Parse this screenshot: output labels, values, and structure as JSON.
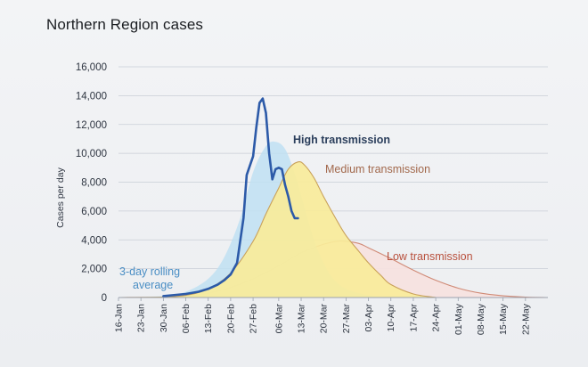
{
  "page": {
    "title": "Northern Region cases"
  },
  "colors": {
    "high_fill": "#bfe0f2",
    "medium_fill": "#f8ec9a",
    "low_fill": "#f6e2df",
    "medium_line": "#c9a15a",
    "low_line": "#d08a76",
    "rolling_line": "#2c5aa8",
    "high_label": "#2b3f5c",
    "medium_label": "#a2684c",
    "low_label": "#b8503c",
    "rolling_label": "#4a8ec4",
    "grid": "#c9ced6",
    "axis": "#9aa2ae"
  },
  "chart_data": {
    "type": "line",
    "title": "Northern Region cases",
    "xlabel": "",
    "ylabel": "Cases per day",
    "ylim": [
      0,
      16000
    ],
    "yticks": [
      0,
      2000,
      4000,
      6000,
      8000,
      10000,
      12000,
      14000,
      16000
    ],
    "ytick_labels": [
      "0",
      "2,000",
      "4,000",
      "6,000",
      "8,000",
      "10,000",
      "12,000",
      "14,000",
      "16,000"
    ],
    "xlim": [
      "2020-01-16",
      "2020-05-29"
    ],
    "xticks": [
      "2020-01-16",
      "2020-01-23",
      "2020-01-30",
      "2020-02-06",
      "2020-02-13",
      "2020-02-20",
      "2020-02-27",
      "2020-03-06",
      "2020-03-13",
      "2020-03-20",
      "2020-03-27",
      "2020-04-03",
      "2020-04-10",
      "2020-04-17",
      "2020-04-24",
      "2020-05-01",
      "2020-05-08",
      "2020-05-15",
      "2020-05-22"
    ],
    "xtick_labels": [
      "16-Jan",
      "23-Jan",
      "30-Jan",
      "06-Feb",
      "13-Feb",
      "20-Feb",
      "27-Feb",
      "06-Mar",
      "13-Mar",
      "20-Mar",
      "27-Mar",
      "03-Apr",
      "10-Apr",
      "17-Apr",
      "24-Apr",
      "01-May",
      "08-May",
      "15-May",
      "22-May"
    ],
    "grid": true,
    "series": [
      {
        "name": "High transmission",
        "style": "area",
        "x": [
          "2020-01-16",
          "2020-01-30",
          "2020-02-06",
          "2020-02-13",
          "2020-02-18",
          "2020-02-23",
          "2020-02-27",
          "2020-03-02",
          "2020-03-05",
          "2020-03-08",
          "2020-03-11",
          "2020-03-14",
          "2020-03-17",
          "2020-03-20",
          "2020-03-23",
          "2020-03-27",
          "2020-04-03",
          "2020-04-10",
          "2020-04-17"
        ],
        "y": [
          0,
          100,
          400,
          1300,
          2800,
          5500,
          8700,
          10500,
          10800,
          10300,
          8600,
          6300,
          4000,
          2400,
          1300,
          600,
          150,
          30,
          0
        ]
      },
      {
        "name": "Medium transmission",
        "style": "area",
        "x": [
          "2020-01-16",
          "2020-01-30",
          "2020-02-06",
          "2020-02-13",
          "2020-02-20",
          "2020-02-27",
          "2020-03-02",
          "2020-03-06",
          "2020-03-09",
          "2020-03-12",
          "2020-03-14",
          "2020-03-17",
          "2020-03-20",
          "2020-03-24",
          "2020-03-27",
          "2020-03-31",
          "2020-04-03",
          "2020-04-07",
          "2020-04-10",
          "2020-04-17",
          "2020-04-24"
        ],
        "y": [
          0,
          40,
          150,
          600,
          1700,
          3900,
          5800,
          7600,
          8900,
          9400,
          9200,
          8300,
          7000,
          5400,
          4300,
          3200,
          2400,
          1500,
          900,
          250,
          0
        ]
      },
      {
        "name": "Low transmission",
        "style": "area",
        "x": [
          "2020-01-16",
          "2020-01-30",
          "2020-02-06",
          "2020-02-13",
          "2020-02-20",
          "2020-02-27",
          "2020-03-06",
          "2020-03-13",
          "2020-03-20",
          "2020-03-24",
          "2020-03-27",
          "2020-03-31",
          "2020-04-03",
          "2020-04-10",
          "2020-04-17",
          "2020-04-24",
          "2020-05-01",
          "2020-05-08",
          "2020-05-15",
          "2020-05-22",
          "2020-05-29"
        ],
        "y": [
          0,
          30,
          100,
          300,
          700,
          1300,
          2200,
          3100,
          3700,
          3900,
          3900,
          3750,
          3450,
          2700,
          1900,
          1200,
          650,
          300,
          120,
          30,
          0
        ]
      },
      {
        "name": "3-day rolling average",
        "style": "line",
        "x": [
          "2020-01-30",
          "2020-02-06",
          "2020-02-10",
          "2020-02-13",
          "2020-02-16",
          "2020-02-18",
          "2020-02-20",
          "2020-02-22",
          "2020-02-24",
          "2020-02-25",
          "2020-02-27",
          "2020-02-28",
          "2020-02-29",
          "2020-03-01",
          "2020-03-02",
          "2020-03-03",
          "2020-03-04",
          "2020-03-05",
          "2020-03-06",
          "2020-03-07",
          "2020-03-08",
          "2020-03-09",
          "2020-03-10",
          "2020-03-11",
          "2020-03-12"
        ],
        "y": [
          100,
          250,
          400,
          600,
          900,
          1200,
          1600,
          2400,
          5500,
          8500,
          9800,
          11800,
          13500,
          13800,
          12800,
          10000,
          8200,
          8900,
          9000,
          8900,
          7800,
          7000,
          6000,
          5500,
          5500
        ]
      }
    ],
    "annotations": [
      {
        "text": "High transmission",
        "series": "High transmission"
      },
      {
        "text": "Medium transmission",
        "series": "Medium transmission"
      },
      {
        "text": "Low transmission",
        "series": "Low transmission"
      },
      {
        "text": "3-day rolling",
        "series": "3-day rolling average"
      },
      {
        "text": "average",
        "series": "3-day rolling average"
      }
    ]
  }
}
